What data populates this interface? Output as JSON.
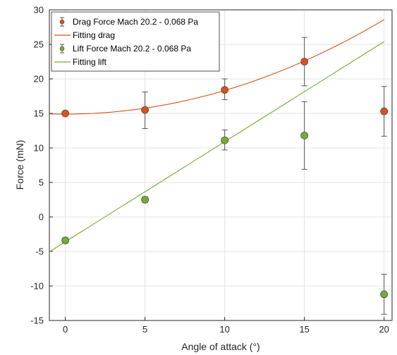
{
  "chart_data": {
    "type": "scatter",
    "title": "",
    "xlabel": "Angle of attack (°)",
    "ylabel": "Force (mN)",
    "xlim": [
      -1,
      20.5
    ],
    "ylim": [
      -15,
      30
    ],
    "xticks": [
      0,
      5,
      10,
      15,
      20
    ],
    "yticks": [
      -15,
      -10,
      -5,
      0,
      5,
      10,
      15,
      20,
      25,
      30
    ],
    "grid": true,
    "legend_position": "top-left",
    "series": [
      {
        "name": "Drag Force Mach 20.2 - 0.068 Pa",
        "kind": "errorbar",
        "color": "#d95319",
        "x": [
          0,
          5,
          10,
          15,
          20
        ],
        "y": [
          15.0,
          15.5,
          18.4,
          22.5,
          15.3
        ],
        "err_low": [
          0.3,
          2.7,
          1.4,
          3.5,
          3.6
        ],
        "err_high": [
          0.3,
          2.6,
          1.6,
          3.5,
          3.6
        ]
      },
      {
        "name": "Fitting drag",
        "kind": "line",
        "color": "#d95319",
        "fit": "quadratic",
        "coefficients": [
          14.9,
          0.0,
          0.0342
        ],
        "x_range": [
          -1,
          20
        ]
      },
      {
        "name": "Lift Force Mach 20.2 - 0.068 Pa",
        "kind": "errorbar",
        "color": "#77ac30",
        "x": [
          0,
          5,
          10,
          15,
          20
        ],
        "y": [
          -3.4,
          2.5,
          11.1,
          11.8,
          -11.2
        ],
        "err_low": [
          0.4,
          0.4,
          1.4,
          4.9,
          2.9
        ],
        "err_high": [
          0.4,
          0.4,
          1.5,
          4.9,
          2.9
        ]
      },
      {
        "name": "Fitting lift",
        "kind": "line",
        "color": "#77ac30",
        "fit": "linear",
        "coefficients": [
          -3.6,
          1.45
        ],
        "x_range": [
          -1,
          20
        ]
      }
    ]
  }
}
